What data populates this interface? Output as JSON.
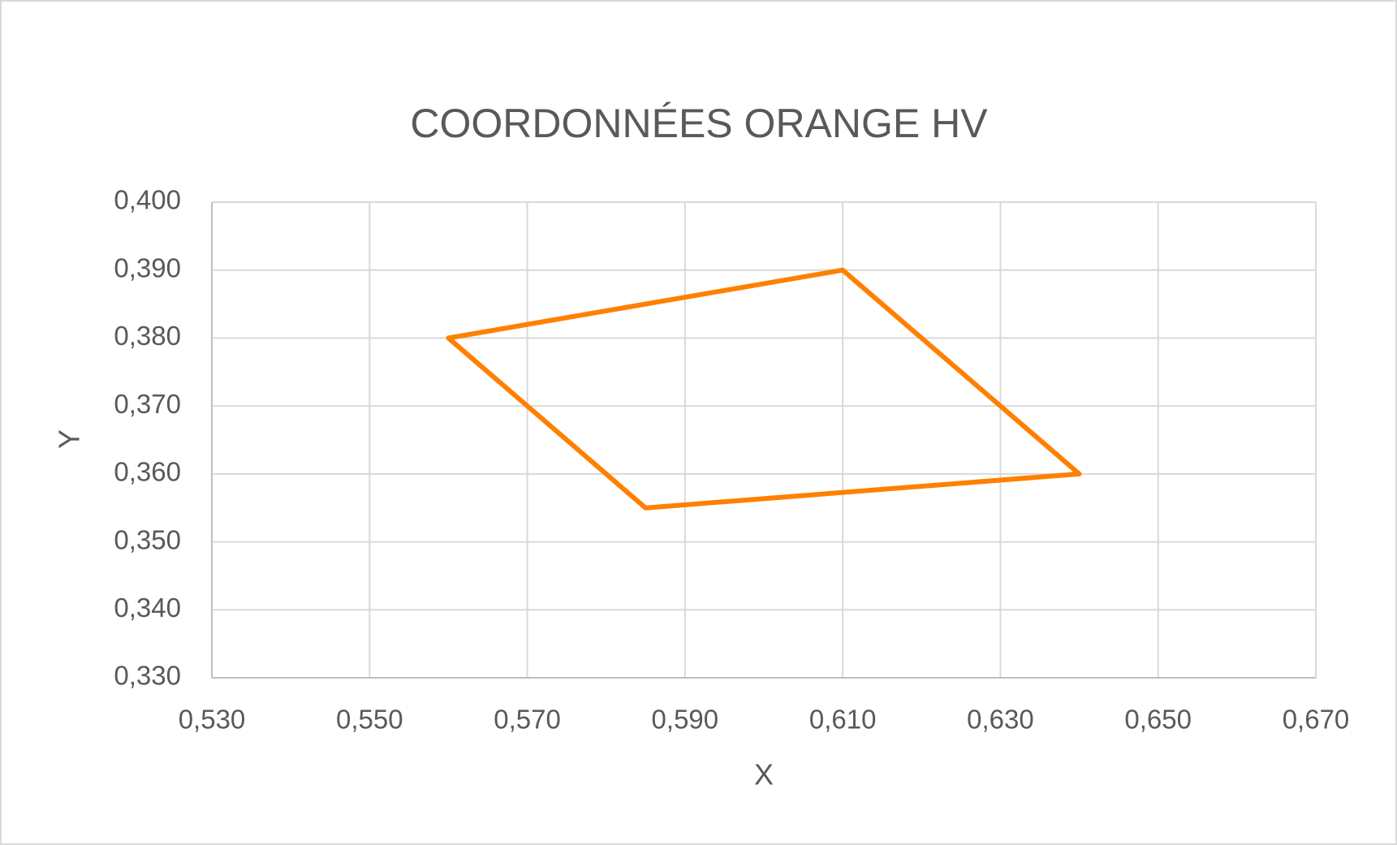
{
  "chart_data": {
    "type": "line",
    "title": "COORDONNÉES ORANGE HV",
    "x_label": "X",
    "y_label": "Y",
    "x": [
      0.56,
      0.61,
      0.64,
      0.585,
      0.56
    ],
    "series": [
      {
        "name": "Orange HV",
        "color": "#ff8000",
        "values": [
          0.38,
          0.39,
          0.36,
          0.355,
          0.38
        ]
      }
    ],
    "xlim": [
      0.53,
      0.67
    ],
    "xticks": [
      {
        "value": 0.53,
        "label": "0,530"
      },
      {
        "value": 0.55,
        "label": "0,550"
      },
      {
        "value": 0.57,
        "label": "0,570"
      },
      {
        "value": 0.59,
        "label": "0,590"
      },
      {
        "value": 0.61,
        "label": "0,610"
      },
      {
        "value": 0.63,
        "label": "0,630"
      },
      {
        "value": 0.65,
        "label": "0,650"
      },
      {
        "value": 0.67,
        "label": "0,670"
      }
    ],
    "ylim": [
      0.33,
      0.4
    ],
    "yticks": [
      {
        "value": 0.33,
        "label": "0,330"
      },
      {
        "value": 0.34,
        "label": "0,340"
      },
      {
        "value": 0.35,
        "label": "0,350"
      },
      {
        "value": 0.36,
        "label": "0,360"
      },
      {
        "value": 0.37,
        "label": "0,370"
      },
      {
        "value": 0.38,
        "label": "0,380"
      },
      {
        "value": 0.39,
        "label": "0,390"
      },
      {
        "value": 0.4,
        "label": "0,400"
      }
    ],
    "grid": true
  }
}
